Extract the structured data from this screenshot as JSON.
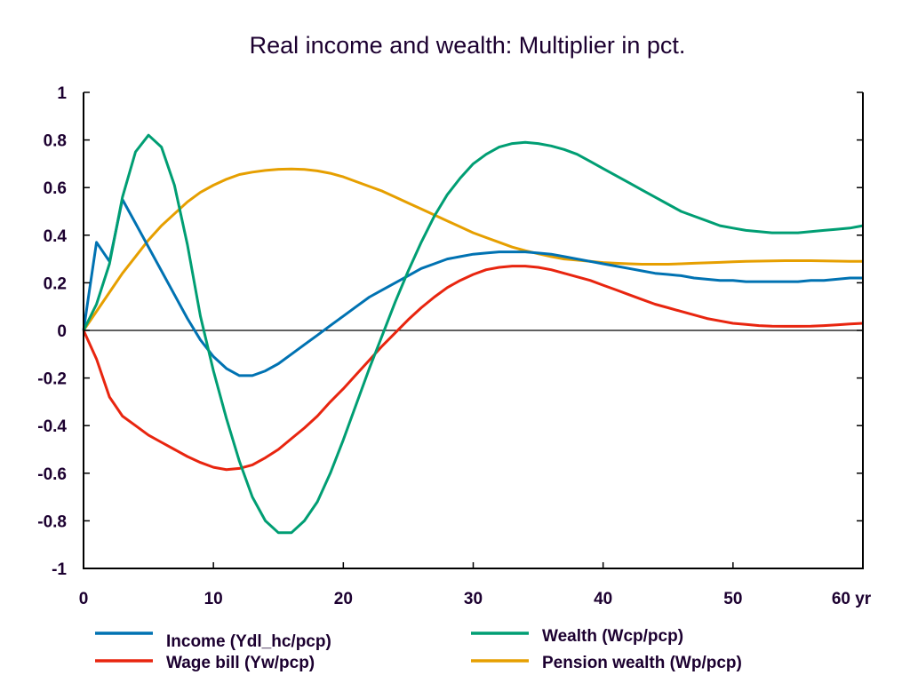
{
  "chart_data": {
    "type": "line",
    "title": "Real income and wealth: Multiplier in pct.",
    "xlabel": "",
    "ylabel": "",
    "x_unit_label": "yr",
    "xlim": [
      0,
      60
    ],
    "ylim": [
      -1,
      1
    ],
    "x_ticks": [
      0,
      10,
      20,
      30,
      40,
      50,
      60
    ],
    "x_tick_labels": [
      "0",
      "10",
      "20",
      "30",
      "40",
      "50",
      "60 yr"
    ],
    "y_ticks": [
      1,
      0.8,
      0.6,
      0.4,
      0.2,
      0,
      -0.2,
      -0.4,
      -0.6,
      -0.8,
      -1
    ],
    "y_tick_labels": [
      "1",
      "0.8",
      "0.6",
      "0.4",
      "0.2",
      "0",
      "-0.2",
      "-0.4",
      "-0.6",
      "-0.8",
      "-1"
    ],
    "grid": false,
    "zero_line": true,
    "legend_position": "bottom",
    "x": [
      0,
      1,
      2,
      3,
      4,
      5,
      6,
      7,
      8,
      9,
      10,
      11,
      12,
      13,
      14,
      15,
      16,
      17,
      18,
      19,
      20,
      21,
      22,
      23,
      24,
      25,
      26,
      27,
      28,
      29,
      30,
      31,
      32,
      33,
      34,
      35,
      36,
      37,
      38,
      39,
      40,
      41,
      42,
      43,
      44,
      45,
      46,
      47,
      48,
      49,
      50,
      51,
      52,
      53,
      54,
      55,
      56,
      57,
      58,
      59,
      60
    ],
    "series": [
      {
        "name": "Income (Ydl_hc/pcp)",
        "color": "#0072B2",
        "values": [
          0,
          0.37,
          0.29,
          0.55,
          0.45,
          0.35,
          0.25,
          0.15,
          0.05,
          -0.04,
          -0.11,
          -0.16,
          -0.19,
          -0.19,
          -0.17,
          -0.14,
          -0.1,
          -0.06,
          -0.02,
          0.02,
          0.06,
          0.1,
          0.14,
          0.17,
          0.2,
          0.23,
          0.26,
          0.28,
          0.3,
          0.31,
          0.32,
          0.325,
          0.33,
          0.33,
          0.33,
          0.325,
          0.32,
          0.31,
          0.3,
          0.29,
          0.28,
          0.27,
          0.26,
          0.25,
          0.24,
          0.235,
          0.23,
          0.22,
          0.215,
          0.21,
          0.21,
          0.205,
          0.205,
          0.205,
          0.205,
          0.205,
          0.21,
          0.21,
          0.215,
          0.22,
          0.22
        ]
      },
      {
        "name": "Wage bill (Yw/pcp)",
        "color": "#E8250F",
        "values": [
          0,
          -0.12,
          -0.28,
          -0.36,
          -0.4,
          -0.44,
          -0.47,
          -0.5,
          -0.53,
          -0.555,
          -0.575,
          -0.585,
          -0.58,
          -0.565,
          -0.535,
          -0.5,
          -0.455,
          -0.41,
          -0.36,
          -0.3,
          -0.245,
          -0.185,
          -0.125,
          -0.065,
          -0.01,
          0.045,
          0.095,
          0.14,
          0.18,
          0.21,
          0.235,
          0.255,
          0.265,
          0.27,
          0.27,
          0.265,
          0.255,
          0.24,
          0.225,
          0.21,
          0.19,
          0.17,
          0.15,
          0.13,
          0.11,
          0.095,
          0.08,
          0.065,
          0.05,
          0.04,
          0.03,
          0.025,
          0.02,
          0.018,
          0.017,
          0.017,
          0.018,
          0.02,
          0.023,
          0.027,
          0.03
        ]
      },
      {
        "name": "Wealth (Wcp/pcp)",
        "color": "#009E73",
        "values": [
          0,
          0.11,
          0.28,
          0.56,
          0.75,
          0.82,
          0.77,
          0.61,
          0.36,
          0.06,
          -0.17,
          -0.37,
          -0.55,
          -0.7,
          -0.8,
          -0.85,
          -0.85,
          -0.8,
          -0.72,
          -0.6,
          -0.46,
          -0.31,
          -0.16,
          -0.02,
          0.12,
          0.25,
          0.37,
          0.48,
          0.57,
          0.64,
          0.7,
          0.74,
          0.77,
          0.785,
          0.79,
          0.785,
          0.775,
          0.76,
          0.74,
          0.71,
          0.68,
          0.65,
          0.62,
          0.59,
          0.56,
          0.53,
          0.5,
          0.48,
          0.46,
          0.44,
          0.43,
          0.42,
          0.415,
          0.41,
          0.41,
          0.41,
          0.415,
          0.42,
          0.425,
          0.43,
          0.44
        ]
      },
      {
        "name": "Pension wealth (Wp/pcp)",
        "color": "#E69F00",
        "values": [
          0,
          0.08,
          0.16,
          0.24,
          0.31,
          0.38,
          0.44,
          0.49,
          0.54,
          0.58,
          0.61,
          0.635,
          0.655,
          0.665,
          0.672,
          0.677,
          0.678,
          0.676,
          0.67,
          0.66,
          0.645,
          0.625,
          0.605,
          0.585,
          0.56,
          0.535,
          0.51,
          0.485,
          0.46,
          0.435,
          0.41,
          0.39,
          0.37,
          0.35,
          0.335,
          0.322,
          0.31,
          0.3,
          0.295,
          0.29,
          0.285,
          0.282,
          0.28,
          0.278,
          0.278,
          0.278,
          0.28,
          0.282,
          0.284,
          0.286,
          0.288,
          0.29,
          0.291,
          0.292,
          0.293,
          0.293,
          0.293,
          0.292,
          0.291,
          0.29,
          0.29
        ]
      }
    ],
    "legend": [
      {
        "label": "Income (Ydl_hc/pcp)",
        "color": "#0072B2"
      },
      {
        "label": "Wage bill (Yw/pcp)",
        "color": "#E8250F"
      },
      {
        "label": "Wealth (Wcp/pcp)",
        "color": "#009E73"
      },
      {
        "label": "Pension wealth (Wp/pcp)",
        "color": "#E69F00"
      }
    ]
  }
}
